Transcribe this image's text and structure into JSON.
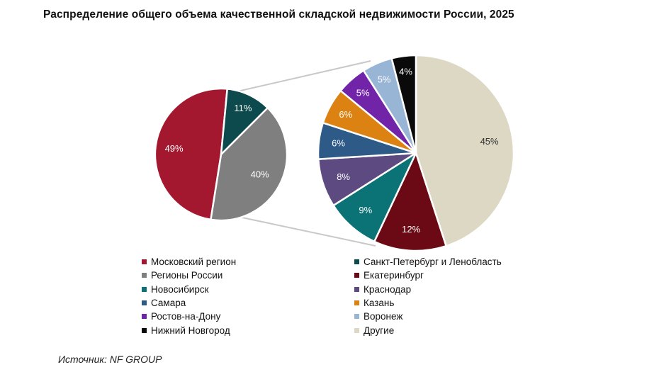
{
  "title": "Распределение общего объема качественной складской недвижимости России, 2025",
  "source": "Источник: NF GROUP",
  "chart_data": [
    {
      "type": "pie",
      "series": [
        {
          "name": "Московский регион",
          "value": 49,
          "label": "49%",
          "color": "#a3172f"
        },
        {
          "name": "Санкт-Петербург и Ленобласть",
          "value": 11,
          "label": "11%",
          "color": "#0c4a4d"
        },
        {
          "name": "Регионы России",
          "value": 40,
          "label": "40%",
          "color": "#7f7f7f"
        }
      ]
    },
    {
      "type": "pie",
      "series": [
        {
          "name": "Другие",
          "value": 45,
          "label": "45%",
          "color": "#ddd8c4"
        },
        {
          "name": "Екатеринбург",
          "value": 12,
          "label": "12%",
          "color": "#6b0a14"
        },
        {
          "name": "Новосибирск",
          "value": 9,
          "label": "9%",
          "color": "#0b7275"
        },
        {
          "name": "Краснодар",
          "value": 8,
          "label": "8%",
          "color": "#5c4a80"
        },
        {
          "name": "Самара",
          "value": 6,
          "label": "6%",
          "color": "#2d5a86"
        },
        {
          "name": "Казань",
          "value": 6,
          "label": "6%",
          "color": "#dc8212"
        },
        {
          "name": "Ростов-на-Дону",
          "value": 5,
          "label": "5%",
          "color": "#7224a8"
        },
        {
          "name": "Воронеж",
          "value": 5,
          "label": "5%",
          "color": "#99b5d6"
        },
        {
          "name": "Нижний Новгород",
          "value": 4,
          "label": "4%",
          "color": "#0a0a0a"
        }
      ]
    }
  ],
  "legend": [
    {
      "label": "Московский регион",
      "color": "#a3172f"
    },
    {
      "label": "Санкт-Петербург и Ленобласть",
      "color": "#0c4a4d"
    },
    {
      "label": "Регионы России",
      "color": "#7f7f7f"
    },
    {
      "label": "Екатеринбург",
      "color": "#6b0a14"
    },
    {
      "label": "Новосибирск",
      "color": "#0b7275"
    },
    {
      "label": "Краснодар",
      "color": "#5c4a80"
    },
    {
      "label": "Самара",
      "color": "#2d5a86"
    },
    {
      "label": "Казань",
      "color": "#dc8212"
    },
    {
      "label": "Ростов-на-Дону",
      "color": "#7224a8"
    },
    {
      "label": "Воронеж",
      "color": "#99b5d6"
    },
    {
      "label": "Нижний Новгород",
      "color": "#0a0a0a"
    },
    {
      "label": "Другие",
      "color": "#ddd8c4"
    }
  ]
}
